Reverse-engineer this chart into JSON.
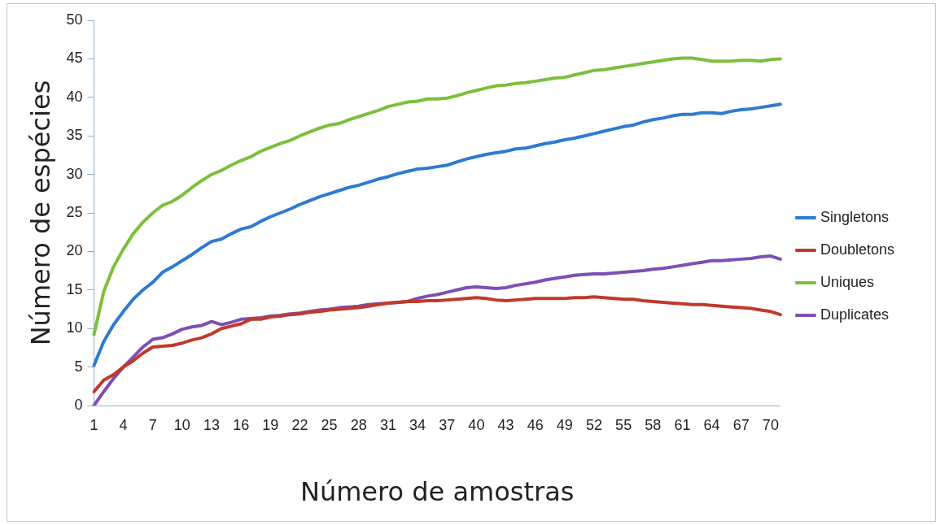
{
  "chart_data": {
    "type": "line",
    "xlabel": "Número de amostras",
    "ylabel": "Número de espécies",
    "categories": [
      "1",
      null,
      null,
      "4",
      null,
      null,
      "7",
      null,
      null,
      "10",
      null,
      null,
      "13",
      null,
      null,
      "16",
      null,
      null,
      "19",
      null,
      null,
      "22",
      null,
      null,
      "25",
      null,
      null,
      "28",
      null,
      null,
      "31",
      null,
      null,
      "34",
      null,
      null,
      "37",
      null,
      null,
      "40",
      null,
      null,
      "43",
      null,
      null,
      "46",
      null,
      null,
      "49",
      null,
      null,
      "52",
      null,
      null,
      "55",
      null,
      null,
      "58",
      null,
      null,
      "61",
      null,
      null,
      "64",
      null,
      null,
      "67",
      null,
      null,
      "70",
      null
    ],
    "series": [
      {
        "name": "Singletons",
        "color": "#2e7bcf",
        "values": [
          5.2,
          8.3,
          10.5,
          12.2,
          13.8,
          15,
          16,
          17.3,
          18,
          18.8,
          19.6,
          20.5,
          21.3,
          21.6,
          22.3,
          22.9,
          23.2,
          23.9,
          24.5,
          25,
          25.5,
          26.1,
          26.6,
          27.1,
          27.5,
          27.9,
          28.3,
          28.6,
          29,
          29.4,
          29.7,
          30.1,
          30.4,
          30.7,
          30.8,
          31,
          31.2,
          31.6,
          32,
          32.3,
          32.6,
          32.8,
          33,
          33.3,
          33.4,
          33.7,
          34,
          34.2,
          34.5,
          34.7,
          35,
          35.3,
          35.6,
          35.9,
          36.2,
          36.4,
          36.8,
          37.1,
          37.3,
          37.6,
          37.8,
          37.8,
          38,
          38,
          37.9,
          38.2,
          38.4,
          38.5,
          38.7,
          38.9,
          39.1
        ]
      },
      {
        "name": "Doubletons",
        "color": "#c0392b",
        "values": [
          1.8,
          3.3,
          4,
          5,
          5.8,
          6.8,
          7.6,
          7.7,
          7.8,
          8.1,
          8.5,
          8.8,
          9.3,
          10,
          10.3,
          10.6,
          11.2,
          11.2,
          11.5,
          11.6,
          11.8,
          11.9,
          12.1,
          12.2,
          12.4,
          12.5,
          12.6,
          12.7,
          12.9,
          13.1,
          13.3,
          13.4,
          13.5,
          13.5,
          13.6,
          13.6,
          13.7,
          13.8,
          13.9,
          14,
          13.9,
          13.7,
          13.6,
          13.7,
          13.8,
          13.9,
          13.9,
          13.9,
          13.9,
          14,
          14,
          14.1,
          14,
          13.9,
          13.8,
          13.8,
          13.6,
          13.5,
          13.4,
          13.3,
          13.2,
          13.1,
          13.1,
          13,
          12.9,
          12.8,
          12.7,
          12.6,
          12.4,
          12.2,
          11.8
        ]
      },
      {
        "name": "Uniques",
        "color": "#7cbf3c",
        "values": [
          9.2,
          14.8,
          18,
          20.3,
          22.3,
          23.8,
          25,
          26,
          26.5,
          27.3,
          28.3,
          29.2,
          30,
          30.5,
          31.2,
          31.8,
          32.3,
          33,
          33.5,
          34,
          34.4,
          35,
          35.5,
          36,
          36.4,
          36.6,
          37.1,
          37.5,
          37.9,
          38.3,
          38.8,
          39.1,
          39.4,
          39.5,
          39.8,
          39.8,
          39.9,
          40.2,
          40.6,
          40.9,
          41.2,
          41.5,
          41.6,
          41.8,
          41.9,
          42.1,
          42.3,
          42.5,
          42.6,
          42.9,
          43.2,
          43.5,
          43.6,
          43.8,
          44,
          44.2,
          44.4,
          44.6,
          44.8,
          45,
          45.1,
          45.1,
          44.9,
          44.7,
          44.7,
          44.7,
          44.8,
          44.8,
          44.7,
          44.9,
          45
        ]
      },
      {
        "name": "Duplicates",
        "color": "#7d4fb5",
        "values": [
          0,
          1.8,
          3.5,
          5,
          6.3,
          7.6,
          8.6,
          8.8,
          9.3,
          9.9,
          10.2,
          10.4,
          10.9,
          10.5,
          10.8,
          11.2,
          11.3,
          11.4,
          11.6,
          11.7,
          11.9,
          12,
          12.2,
          12.4,
          12.5,
          12.7,
          12.8,
          12.9,
          13.1,
          13.2,
          13.3,
          13.4,
          13.5,
          13.9,
          14.2,
          14.4,
          14.7,
          15,
          15.3,
          15.4,
          15.3,
          15.2,
          15.3,
          15.6,
          15.8,
          16,
          16.3,
          16.5,
          16.7,
          16.9,
          17,
          17.1,
          17.1,
          17.2,
          17.3,
          17.4,
          17.5,
          17.7,
          17.8,
          18,
          18.2,
          18.4,
          18.6,
          18.8,
          18.8,
          18.9,
          19,
          19.1,
          19.3,
          19.4,
          19
        ]
      }
    ],
    "ylim": [
      0,
      50
    ],
    "yticks": [
      0,
      5,
      10,
      15,
      20,
      25,
      30,
      35,
      40,
      45,
      50
    ],
    "grid": false,
    "legend": "right",
    "marker": "none",
    "line_style": "solid"
  }
}
